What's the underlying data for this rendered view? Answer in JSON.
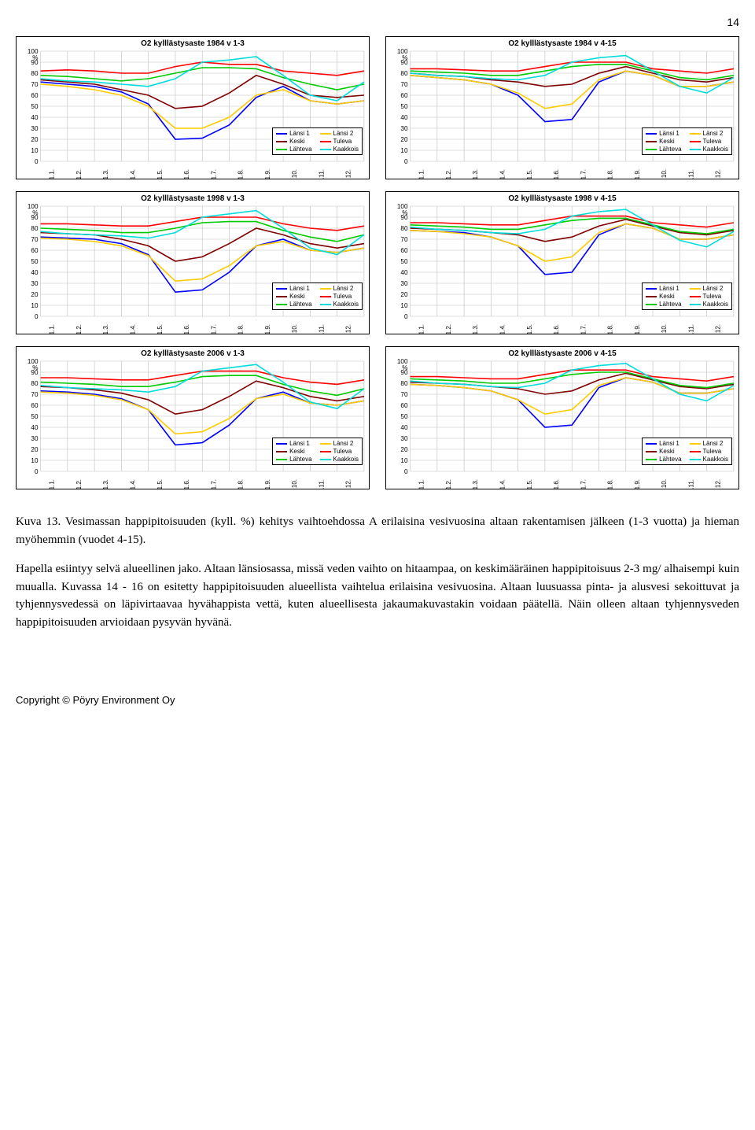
{
  "page_number": "14",
  "x_labels": [
    "1.1.",
    "1.2.",
    "1.3.",
    "1.4.",
    "1.5.",
    "1.6.",
    "1.7.",
    "1.8.",
    "1.9.",
    "1.10.",
    "1.11.",
    "1.12."
  ],
  "y_ticks": [
    0,
    10,
    20,
    30,
    40,
    50,
    60,
    70,
    80,
    90
  ],
  "y_top_label": "100\n%",
  "y_range": [
    0,
    100
  ],
  "series_meta": [
    {
      "name": "Länsi 1",
      "color": "#0000ff"
    },
    {
      "name": "Länsi 2",
      "color": "#ffcc00"
    },
    {
      "name": "Keski",
      "color": "#800000"
    },
    {
      "name": "Tuleva",
      "color": "#ff0000"
    },
    {
      "name": "Lähteva",
      "color": "#00cc00"
    },
    {
      "name": "Kaakkois",
      "color": "#00dddd"
    }
  ],
  "grid_color": "#c0c0c0",
  "charts": [
    {
      "title": "O2 kylllästysaste 1984 v 1-3",
      "series": {
        "Länsi 1": [
          72,
          70,
          68,
          63,
          52,
          20,
          21,
          33,
          58,
          68,
          55,
          52,
          55
        ],
        "Länsi 2": [
          70,
          68,
          65,
          60,
          50,
          30,
          30,
          40,
          60,
          65,
          55,
          52,
          55
        ],
        "Keski": [
          74,
          72,
          70,
          65,
          60,
          48,
          50,
          62,
          78,
          70,
          60,
          58,
          60
        ],
        "Tuleva": [
          82,
          83,
          82,
          80,
          80,
          86,
          90,
          88,
          88,
          82,
          80,
          78,
          82
        ],
        "Lähteva": [
          78,
          77,
          75,
          73,
          75,
          80,
          85,
          85,
          84,
          76,
          70,
          65,
          70
        ],
        "Kaakkois": [
          75,
          73,
          72,
          70,
          68,
          75,
          90,
          92,
          95,
          78,
          60,
          55,
          72
        ]
      }
    },
    {
      "title": "O2 kylllästysaste 1984 v 4-15",
      "series": {
        "Länsi 1": [
          78,
          76,
          74,
          70,
          60,
          36,
          38,
          72,
          82,
          78,
          68,
          68,
          72
        ],
        "Länsi 2": [
          78,
          76,
          74,
          70,
          62,
          48,
          52,
          74,
          82,
          78,
          68,
          68,
          72
        ],
        "Keski": [
          80,
          78,
          77,
          74,
          72,
          68,
          70,
          80,
          86,
          80,
          74,
          72,
          76
        ],
        "Tuleva": [
          84,
          84,
          83,
          82,
          82,
          86,
          90,
          90,
          90,
          84,
          82,
          80,
          84
        ],
        "Lähteva": [
          82,
          81,
          80,
          78,
          78,
          82,
          86,
          88,
          88,
          82,
          76,
          74,
          78
        ],
        "Kaakkois": [
          80,
          78,
          77,
          75,
          74,
          78,
          90,
          94,
          96,
          82,
          68,
          62,
          76
        ]
      }
    },
    {
      "title": "O2 kylllästysaste 1998 v 1-3",
      "series": {
        "Länsi 1": [
          72,
          71,
          70,
          66,
          56,
          22,
          24,
          40,
          64,
          70,
          60,
          58,
          62
        ],
        "Länsi 2": [
          71,
          70,
          68,
          64,
          55,
          32,
          34,
          46,
          64,
          68,
          60,
          58,
          62
        ],
        "Keski": [
          76,
          75,
          74,
          70,
          64,
          50,
          54,
          66,
          80,
          74,
          66,
          62,
          66
        ],
        "Tuleva": [
          84,
          84,
          83,
          82,
          82,
          86,
          90,
          90,
          90,
          84,
          80,
          78,
          82
        ],
        "Lähteva": [
          80,
          79,
          78,
          76,
          76,
          80,
          85,
          86,
          86,
          78,
          72,
          68,
          74
        ],
        "Kaakkois": [
          77,
          75,
          74,
          73,
          71,
          76,
          90,
          93,
          96,
          80,
          62,
          56,
          74
        ]
      }
    },
    {
      "title": "O2 kylllästysaste 1998 v 4-15",
      "series": {
        "Länsi 1": [
          78,
          77,
          76,
          72,
          64,
          38,
          40,
          74,
          84,
          80,
          70,
          70,
          74
        ],
        "Länsi 2": [
          78,
          77,
          75,
          72,
          64,
          50,
          54,
          76,
          84,
          80,
          70,
          70,
          74
        ],
        "Keski": [
          80,
          79,
          78,
          76,
          74,
          68,
          72,
          82,
          88,
          82,
          76,
          74,
          78
        ],
        "Tuleva": [
          85,
          85,
          84,
          83,
          83,
          87,
          91,
          91,
          91,
          85,
          83,
          81,
          85
        ],
        "Lähteva": [
          83,
          82,
          81,
          79,
          79,
          83,
          87,
          89,
          89,
          83,
          77,
          75,
          79
        ],
        "Kaakkois": [
          81,
          79,
          78,
          76,
          75,
          79,
          91,
          95,
          97,
          83,
          69,
          63,
          77
        ]
      }
    },
    {
      "title": "O2 kylllästysaste 2006 v 1-3",
      "series": {
        "Länsi 1": [
          73,
          72,
          70,
          66,
          56,
          24,
          26,
          42,
          66,
          72,
          62,
          60,
          64
        ],
        "Länsi 2": [
          72,
          71,
          69,
          65,
          56,
          34,
          36,
          48,
          66,
          70,
          62,
          60,
          64
        ],
        "Keski": [
          77,
          76,
          74,
          71,
          65,
          52,
          56,
          68,
          82,
          76,
          68,
          64,
          68
        ],
        "Tuleva": [
          85,
          85,
          84,
          83,
          83,
          87,
          91,
          91,
          91,
          85,
          81,
          79,
          83
        ],
        "Lähteva": [
          81,
          80,
          79,
          77,
          77,
          81,
          86,
          87,
          87,
          79,
          73,
          69,
          75
        ],
        "Kaakkois": [
          78,
          76,
          75,
          74,
          72,
          77,
          91,
          94,
          97,
          81,
          63,
          57,
          75
        ]
      }
    },
    {
      "title": "O2 kylllästysaste 2006 v 4-15",
      "series": {
        "Länsi 1": [
          79,
          78,
          76,
          73,
          65,
          40,
          42,
          76,
          85,
          81,
          71,
          71,
          75
        ],
        "Länsi 2": [
          79,
          78,
          76,
          73,
          65,
          52,
          56,
          78,
          85,
          81,
          71,
          71,
          75
        ],
        "Keski": [
          81,
          80,
          79,
          77,
          75,
          70,
          73,
          83,
          89,
          83,
          77,
          75,
          79
        ],
        "Tuleva": [
          86,
          86,
          85,
          84,
          84,
          88,
          92,
          92,
          92,
          86,
          84,
          82,
          86
        ],
        "Lähteva": [
          84,
          83,
          82,
          80,
          80,
          84,
          88,
          90,
          90,
          84,
          78,
          76,
          80
        ],
        "Kaakkois": [
          82,
          80,
          79,
          77,
          76,
          80,
          92,
          96,
          98,
          84,
          70,
          64,
          78
        ]
      }
    }
  ],
  "caption": "Kuva 13. Vesimassan happipitoisuuden (kyll. %) kehitys vaihtoehdossa A erilaisina vesivuosina altaan rakentamisen jälkeen (1-3 vuotta) ja hieman myöhemmin (vuodet 4-15).",
  "body": "Hapella esiintyy selvä alueellinen jako. Altaan länsiosassa, missä veden vaihto on hitaampaa, on keskimääräinen happipitoisuus 2-3 mg/ alhaisempi kuin muualla. Kuvassa 14 - 16 on esitetty happipitoisuuden alueellista vaihtelua erilaisina vesivuosina. Altaan luusuassa pinta- ja alusvesi sekoittuvat ja tyhjennysvedessä on läpivirtaavaa hyvähappista vettä, kuten alueellisesta jakaumakuvastakin voidaan päätellä. Näin olleen altaan tyhjennysveden happipitoisuuden arvioidaan pysyvän hyvänä.",
  "footer": "Copyright © Pöyry Environment Oy"
}
